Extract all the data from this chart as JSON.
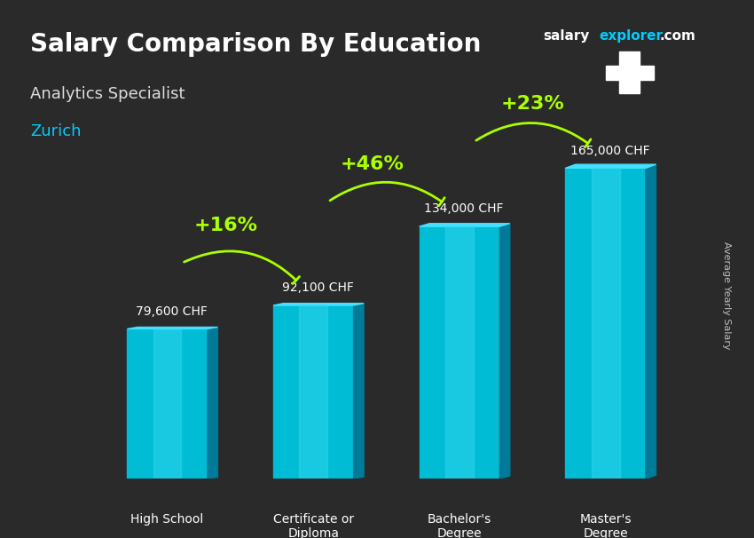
{
  "title": "Salary Comparison By Education",
  "subtitle": "Analytics Specialist",
  "location": "Zurich",
  "watermark": "salaryexplorer.com",
  "y_label": "Average Yearly Salary",
  "categories": [
    "High School",
    "Certificate or\nDiploma",
    "Bachelor's\nDegree",
    "Master's\nDegree"
  ],
  "values": [
    79600,
    92100,
    134000,
    165000
  ],
  "value_labels": [
    "79,600 CHF",
    "92,100 CHF",
    "134,000 CHF",
    "165,000 CHF"
  ],
  "pct_labels": [
    "+16%",
    "+46%",
    "+23%"
  ],
  "bar_color_top": "#00d4ff",
  "bar_color_mid": "#00b8e6",
  "bar_color_dark": "#0088aa",
  "bar_color_side": "#007a99",
  "bg_color": "#1a1a2e",
  "text_color": "#ffffff",
  "green_color": "#aaff00",
  "title_color": "#ffffff",
  "subtitle_color": "#cccccc",
  "location_color": "#00ccff",
  "flag_bg": "#cc0000",
  "ylim": [
    0,
    200000
  ]
}
